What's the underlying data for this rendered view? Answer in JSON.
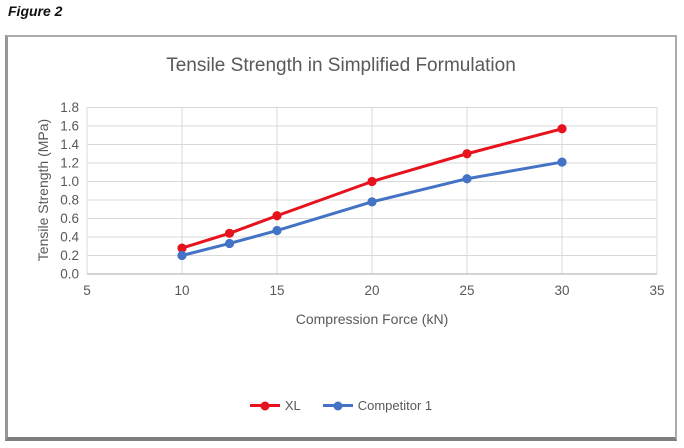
{
  "figure_label": "Figure 2",
  "chart_data": {
    "type": "line",
    "title": "Tensile Strength in Simplified Formulation",
    "xlabel": "Compression Force (kN)",
    "ylabel": "Tensile Strength (MPa)",
    "x": [
      10,
      12.5,
      15,
      20,
      25,
      30
    ],
    "series": [
      {
        "name": "XL",
        "color": "#e6131e",
        "marker": "circle",
        "values": [
          0.28,
          0.44,
          0.63,
          1.0,
          1.3,
          1.57
        ]
      },
      {
        "name": "Competitor 1",
        "color": "#4472c4",
        "marker": "circle",
        "values": [
          0.2,
          0.33,
          0.47,
          0.78,
          1.03,
          1.21
        ]
      }
    ],
    "xlim": [
      5,
      35
    ],
    "ylim": [
      0,
      1.8
    ],
    "x_ticks": [
      "5",
      "10",
      "15",
      "20",
      "25",
      "30",
      "35"
    ],
    "y_ticks": [
      "0.0",
      "0.2",
      "0.4",
      "0.6",
      "0.8",
      "1.0",
      "1.2",
      "1.4",
      "1.6",
      "1.8"
    ],
    "grid": true,
    "legend_position": "bottom",
    "text_color": "#595959",
    "grid_color": "#d9d9d9",
    "axis_line_color": "#c6c6c6"
  }
}
